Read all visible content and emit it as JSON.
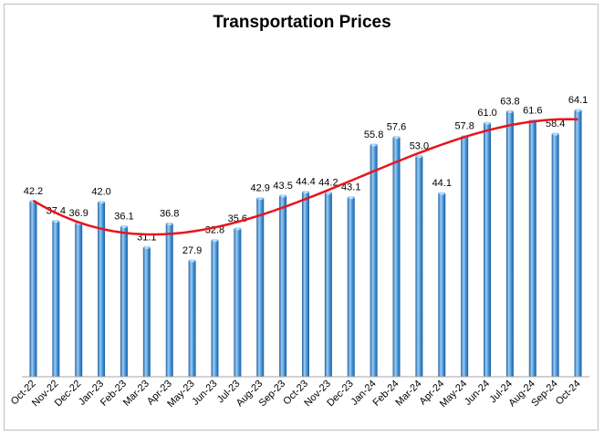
{
  "chart_data": {
    "type": "bar",
    "title": "Transportation Prices",
    "xlabel": "",
    "ylabel": "",
    "ylim": [
      0,
      70
    ],
    "grid": false,
    "legend": "none",
    "categories": [
      "Oct-22",
      "Nov-22",
      "Dec-22",
      "Jan-23",
      "Feb-23",
      "Mar-23",
      "Apr-23",
      "May-23",
      "Jun-23",
      "Jul-23",
      "Aug-23",
      "Sep-23",
      "Oct-23",
      "Nov-23",
      "Dec-23",
      "Jan-24",
      "Feb-24",
      "Mar-24",
      "Apr-24",
      "May-24",
      "Jun-24",
      "Jul-24",
      "Aug-24",
      "Sep-24",
      "Oct-24"
    ],
    "values": [
      42.2,
      37.4,
      36.9,
      42.0,
      36.1,
      31.1,
      36.8,
      27.9,
      32.8,
      35.6,
      42.9,
      43.5,
      44.4,
      44.2,
      43.1,
      55.8,
      57.6,
      53.0,
      44.1,
      57.8,
      61.0,
      63.8,
      61.6,
      58.4,
      64.1
    ],
    "labels": [
      "42.2",
      "37.4",
      "36.9",
      "42.0",
      "36.1",
      "31.1",
      "36.8",
      "27.9",
      "32.8",
      "35.6",
      "42.9",
      "43.5",
      "44.4",
      "44.2",
      "43.1",
      "55.8",
      "57.6",
      "53.0",
      "44.1",
      "57.8",
      "61.0",
      "63.8",
      "61.6",
      "58.4",
      "64.1"
    ],
    "trendline": {
      "type": "polynomial",
      "color": "#e8141c"
    },
    "colors": {
      "bar": "#3d8fd6",
      "bar_light": "#9ccdf5",
      "bar_dark": "#1f5f9c",
      "axis": "#a6a6a6"
    }
  }
}
